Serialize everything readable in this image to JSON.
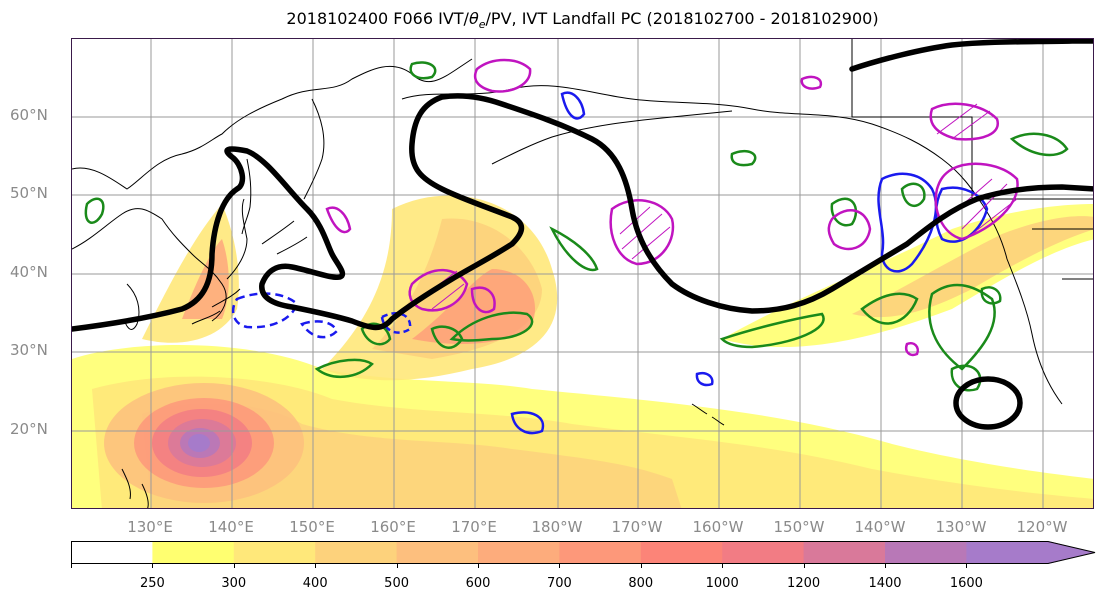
{
  "title": {
    "prefix": "2018102400 F066 IVT/",
    "theta": "θ",
    "sub": "e",
    "suffix": "/PV, IVT Landfall PC (2018102700 - 2018102900)"
  },
  "map": {
    "lat_labels": [
      "60°N",
      "50°N",
      "40°N",
      "30°N",
      "20°N"
    ],
    "lon_labels": [
      "130°E",
      "140°E",
      "150°E",
      "160°E",
      "170°E",
      "180°W",
      "170°W",
      "160°W",
      "150°W",
      "140°W",
      "130°W",
      "120°W"
    ],
    "fields": [
      "IVT (filled contours)",
      "PV contour (black)",
      "θe contours (green/blue)",
      "IVT Landfall PC (magenta hatched)"
    ]
  },
  "colorbar": {
    "levels": [
      "250",
      "300",
      "400",
      "500",
      "600",
      "700",
      "800",
      "1000",
      "1200",
      "1400",
      "1600"
    ],
    "colors": [
      "#ffffff",
      "#ffff70",
      "#ffe87a",
      "#fdd27c",
      "#fdbf7e",
      "#fdac7c",
      "#fd987a",
      "#fc8478",
      "#f27c84",
      "#d9799a",
      "#b878b7",
      "#a67bca"
    ]
  },
  "colors": {
    "pv_contour": "#000000",
    "theta_green": "#1a8a1a",
    "theta_blue": "#1a1aee",
    "landfall_magenta": "#c014c0",
    "grid": "#9a9a9a",
    "label_gray": "#8a8a8a"
  }
}
